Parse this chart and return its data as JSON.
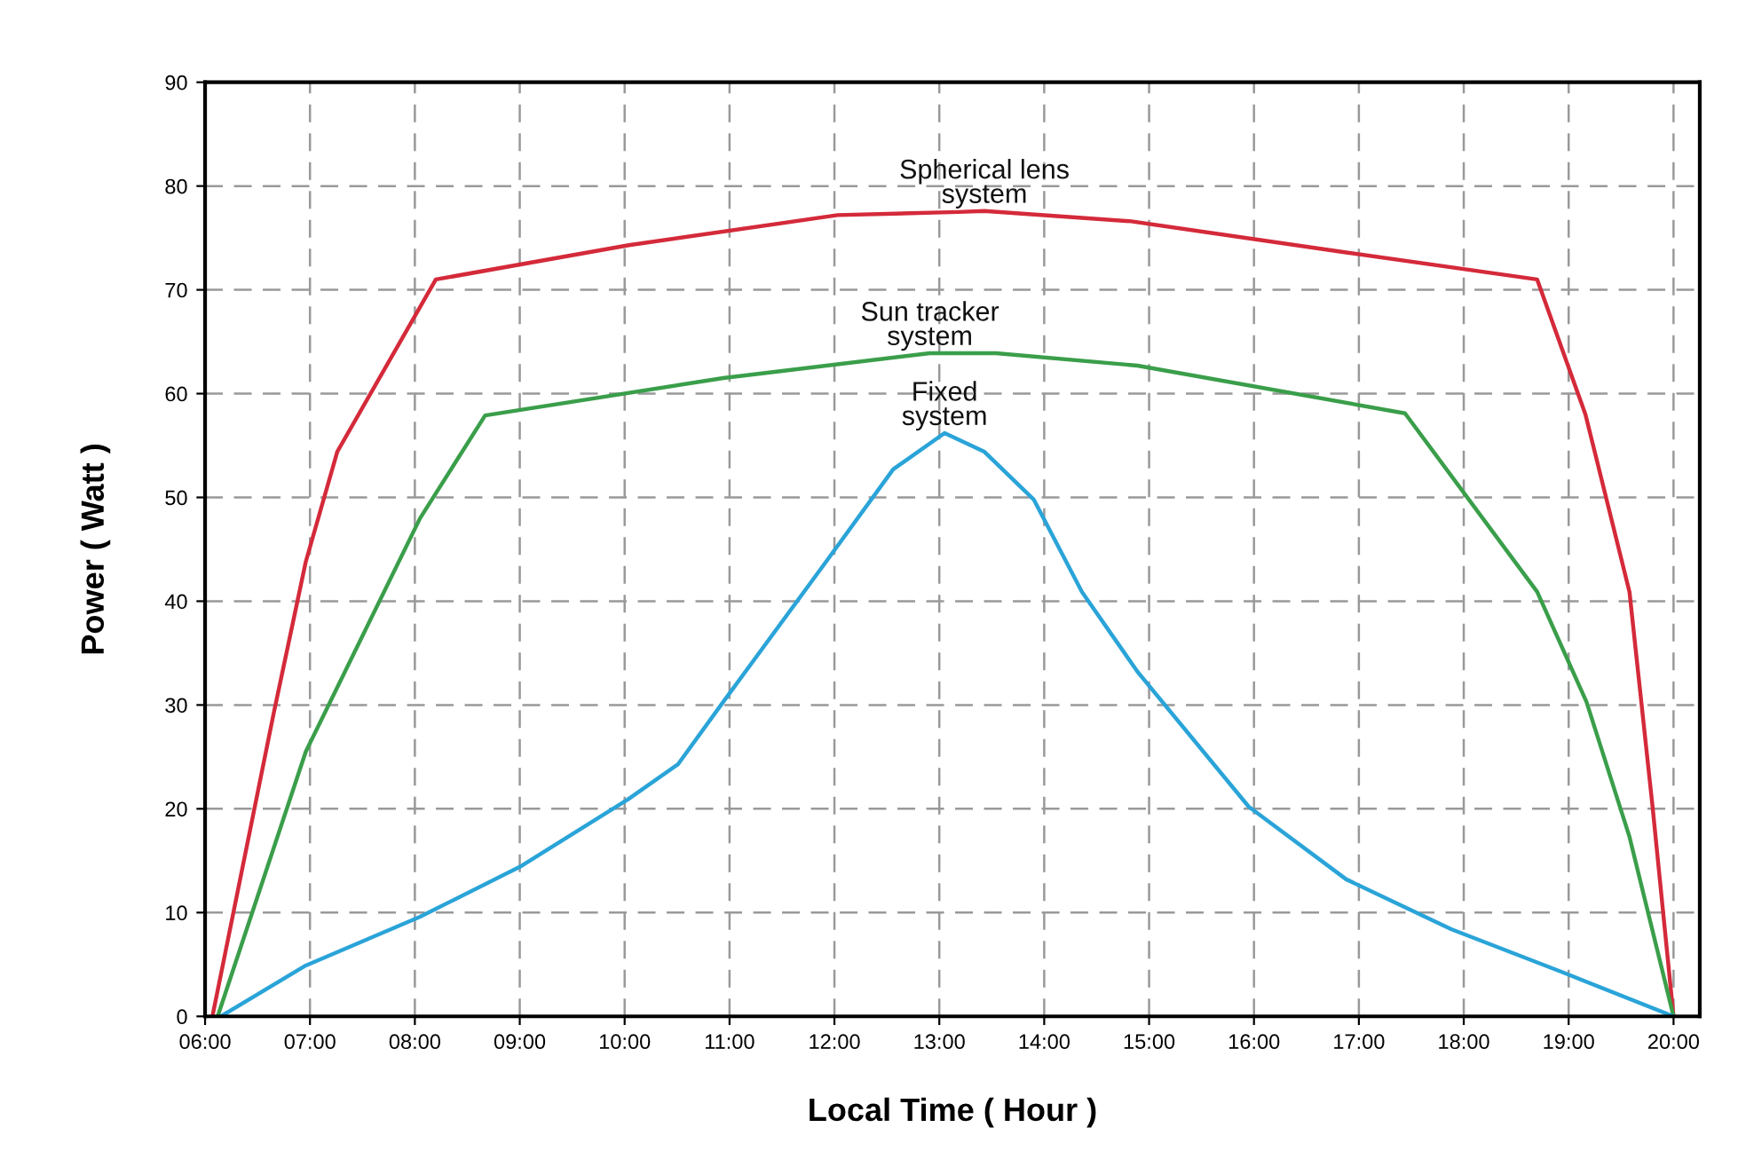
{
  "chart_data": {
    "type": "line",
    "xlabel": "Local Time ( Hour )",
    "ylabel": "Power ( Watt )",
    "xlim": [
      6,
      20.25
    ],
    "ylim": [
      0,
      90
    ],
    "xticks": [
      {
        "value": 6,
        "label": "06:00"
      },
      {
        "value": 7,
        "label": "07:00"
      },
      {
        "value": 8,
        "label": "08:00"
      },
      {
        "value": 9,
        "label": "09:00"
      },
      {
        "value": 10,
        "label": "10:00"
      },
      {
        "value": 11,
        "label": "11:00"
      },
      {
        "value": 12,
        "label": "12:00"
      },
      {
        "value": 13,
        "label": "13:00"
      },
      {
        "value": 14,
        "label": "14:00"
      },
      {
        "value": 15,
        "label": "15:00"
      },
      {
        "value": 16,
        "label": "16:00"
      },
      {
        "value": 17,
        "label": "17:00"
      },
      {
        "value": 18,
        "label": "18:00"
      },
      {
        "value": 19,
        "label": "19:00"
      },
      {
        "value": 20,
        "label": "20:00"
      }
    ],
    "yticks": [
      0,
      10,
      20,
      30,
      40,
      50,
      60,
      70,
      80,
      90
    ],
    "grid": true,
    "line_style": "solid",
    "marker": "none",
    "legend": false,
    "series": [
      {
        "name": "Spherical lens system",
        "color": "#d42a3a",
        "x": [
          6.07,
          6.65,
          6.96,
          7.26,
          8.2,
          10.04,
          12.03,
          13.18,
          13.43,
          14.83,
          16.88,
          18.7,
          19.16,
          19.58,
          19.8,
          20.0
        ],
        "values": [
          0,
          29,
          43.8,
          54.4,
          71,
          74.3,
          77.2,
          77.5,
          77.6,
          76.6,
          73.6,
          71,
          58,
          40.9,
          20.2,
          0
        ]
      },
      {
        "name": "Sun tracker system",
        "color": "#3a9e4a",
        "x": [
          6.12,
          6.96,
          8.05,
          8.67,
          10.94,
          12.91,
          13.54,
          14.89,
          17.44,
          18.7,
          19.17,
          19.58,
          20.0
        ],
        "values": [
          0,
          25.5,
          48,
          57.9,
          61.5,
          63.9,
          63.9,
          62.7,
          58.1,
          40.9,
          30.3,
          17.3,
          0
        ]
      },
      {
        "name": "Fixed system",
        "color": "#2aa4d8",
        "x": [
          6.15,
          6.96,
          8.05,
          9.0,
          10.03,
          10.51,
          10.94,
          11.92,
          12.56,
          13.05,
          13.43,
          13.9,
          14.36,
          14.89,
          15.95,
          16.88,
          17.88,
          18.93,
          20.0
        ],
        "values": [
          0,
          4.9,
          9.6,
          14.4,
          20.9,
          24.3,
          30.3,
          43.8,
          52.7,
          56.2,
          54.4,
          49.8,
          40.9,
          33.2,
          20.2,
          13.2,
          8.4,
          4.3,
          0
        ]
      }
    ]
  }
}
